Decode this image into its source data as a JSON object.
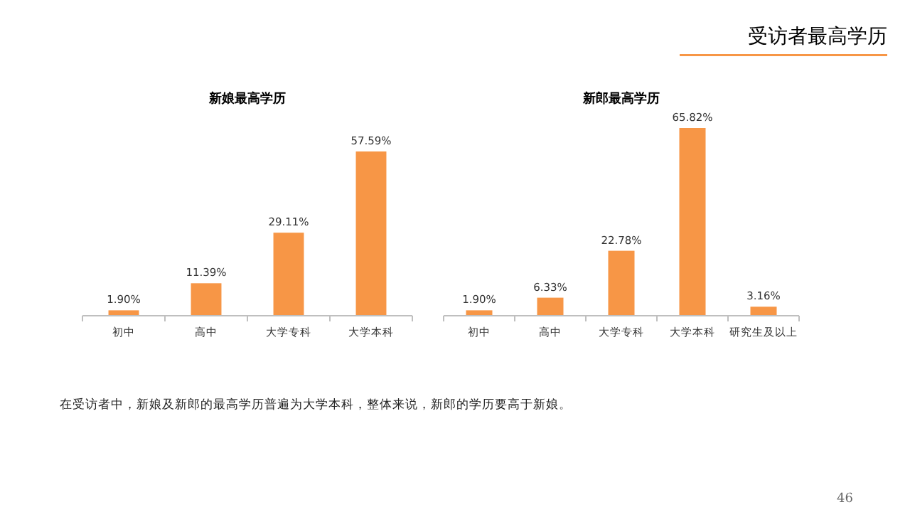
{
  "chart_data": [
    {
      "type": "bar",
      "title": "新娘最高学历",
      "categories": [
        "初中",
        "高中",
        "大学专科",
        "大学本科"
      ],
      "values": [
        1.9,
        11.39,
        29.11,
        57.59
      ],
      "color": "#f79646",
      "data_labels": true,
      "value_labels": [
        "1.90%",
        "11.39%",
        "29.11%",
        "57.59%"
      ]
    },
    {
      "type": "bar",
      "title": "新郎最高学历",
      "categories": [
        "初中",
        "高中",
        "大学专科",
        "大学本科",
        "研究生及以上"
      ],
      "values": [
        1.9,
        6.33,
        22.78,
        65.82,
        3.16
      ],
      "color": "#f79646",
      "data_labels": true,
      "value_labels": [
        "1.90%",
        "6.33%",
        "22.78%",
        "65.82%",
        "3.16%"
      ]
    },
    {
      "type": "other",
      "title": "受访者最高学历",
      "annotations": [
        "在受访者中，新娘及新郎的最高学历普遍为大学本科，整体来说，新郎的学历要高于新娘。",
        "46"
      ]
    }
  ]
}
